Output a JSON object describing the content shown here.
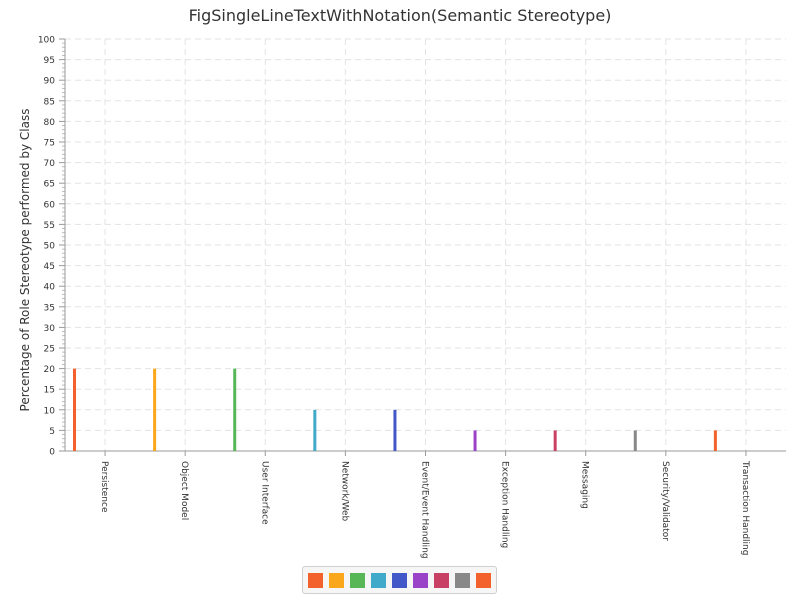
{
  "chart_data": {
    "type": "bar",
    "title": "FigSingleLineTextWithNotation(Semantic Stereotype)",
    "ylabel": "Percentage of Role Stereotype performed by Class",
    "xlabel": "",
    "ylim": [
      0,
      100
    ],
    "y_ticks": [
      0,
      5,
      10,
      15,
      20,
      25,
      30,
      35,
      40,
      45,
      50,
      55,
      60,
      65,
      70,
      75,
      80,
      85,
      90,
      95,
      100
    ],
    "grid": true,
    "legend": "bottom",
    "categories": [
      "Persistence",
      "Object Model",
      "User Interface",
      "Network/Web",
      "Event/Event Handling",
      "Exception Handling",
      "Messaging",
      "Security/Validator",
      "Transaction Handling"
    ],
    "values": [
      20,
      20,
      20,
      10,
      10,
      5,
      5,
      5,
      5
    ],
    "colors": [
      "#f3622d",
      "#fba71b",
      "#57b757",
      "#41a9c9",
      "#4258c9",
      "#9a42c8",
      "#c84164",
      "#888888",
      "#f3622d"
    ]
  }
}
